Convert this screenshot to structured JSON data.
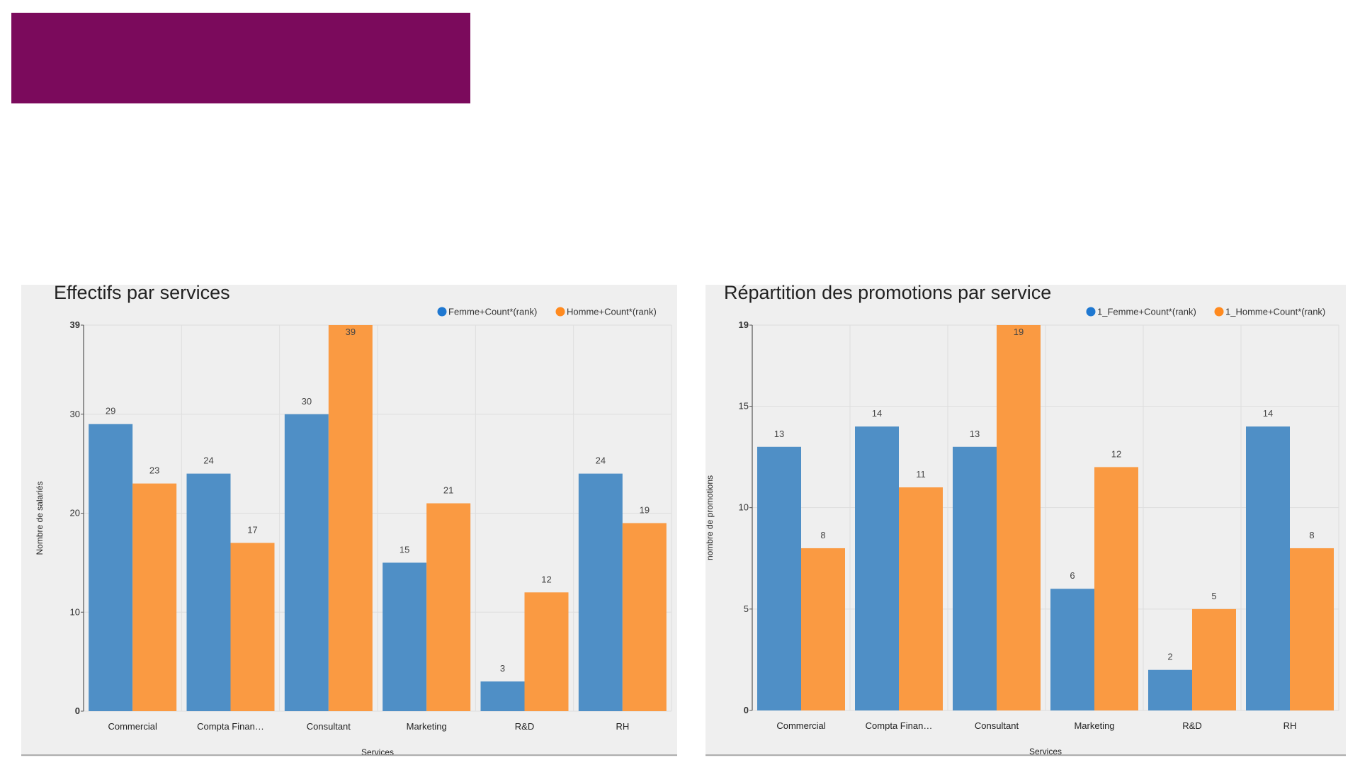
{
  "colors": {
    "banner": "#7b0a5c",
    "femme": "#4f8fc6",
    "homme": "#fa9a42",
    "legend_femme": "#1f78d1",
    "legend_homme": "#ff8a1f",
    "grid": "#dedede",
    "axis": "#555555"
  },
  "chart_data": [
    {
      "type": "bar",
      "title": "Effectifs par services",
      "xlabel": "Services",
      "ylabel": "Nombre de salariés",
      "categories": [
        "Commercial",
        "Compta Finan…",
        "Consultant",
        "Marketing",
        "R&D",
        "RH"
      ],
      "series": [
        {
          "name": "Femme+Count*(rank)",
          "values": [
            29,
            24,
            30,
            15,
            3,
            24
          ]
        },
        {
          "name": "Homme+Count*(rank)",
          "values": [
            23,
            17,
            39,
            21,
            12,
            19
          ]
        }
      ],
      "yticks": [
        0,
        10,
        20,
        30,
        39
      ],
      "ylim": [
        0,
        39
      ],
      "grid": true,
      "legend": "top-right"
    },
    {
      "type": "bar",
      "title": "Répartition des promotions par service",
      "xlabel": "Services",
      "ylabel": "nombre de promotions",
      "categories": [
        "Commercial",
        "Compta Finan…",
        "Consultant",
        "Marketing",
        "R&D",
        "RH"
      ],
      "series": [
        {
          "name": "1_Femme+Count*(rank)",
          "values": [
            13,
            14,
            13,
            6,
            2,
            14
          ]
        },
        {
          "name": "1_Homme+Count*(rank)",
          "values": [
            8,
            11,
            19,
            12,
            5,
            8
          ]
        }
      ],
      "yticks": [
        0,
        5,
        10,
        15,
        19
      ],
      "ylim": [
        0,
        19
      ],
      "grid": true,
      "legend": "top-right"
    }
  ]
}
